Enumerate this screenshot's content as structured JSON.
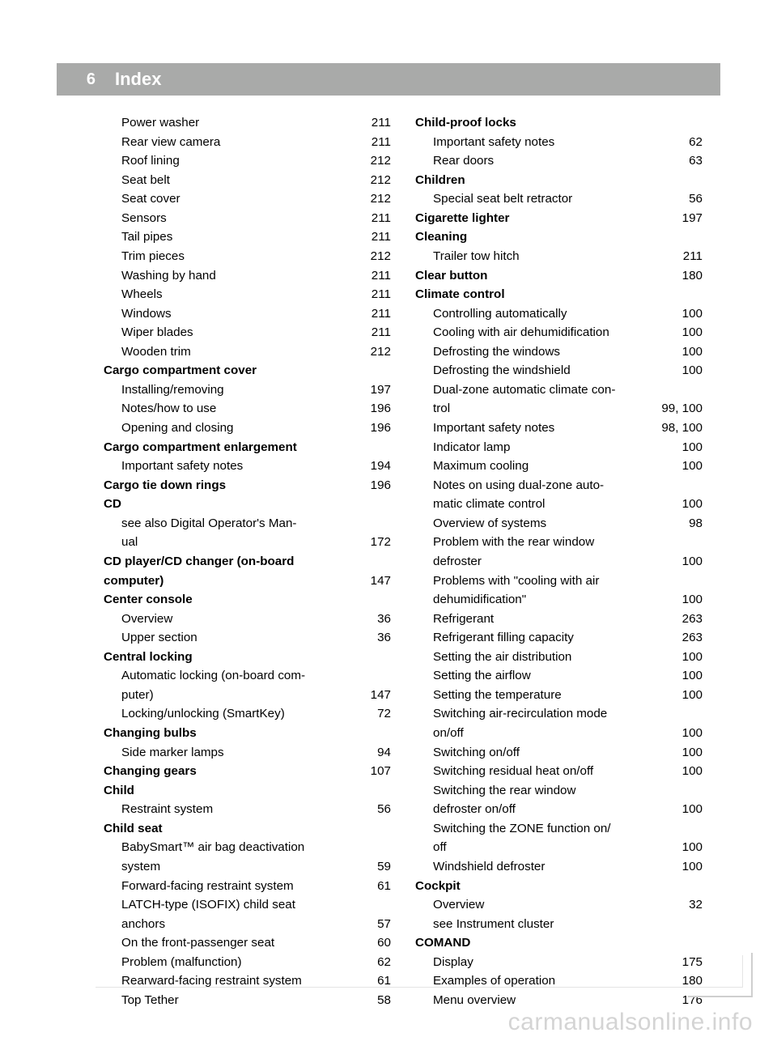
{
  "header": {
    "page_number": "6",
    "title": "Index"
  },
  "watermark": "carmanualsonline.info",
  "left": [
    {
      "label": "Power washer",
      "page": "211",
      "indent": true,
      "bold": false
    },
    {
      "label": "Rear view camera",
      "page": "211",
      "indent": true,
      "bold": false
    },
    {
      "label": "Roof lining",
      "page": "212",
      "indent": true,
      "bold": false
    },
    {
      "label": "Seat belt",
      "page": "212",
      "indent": true,
      "bold": false
    },
    {
      "label": "Seat cover",
      "page": "212",
      "indent": true,
      "bold": false
    },
    {
      "label": "Sensors",
      "page": "211",
      "indent": true,
      "bold": false
    },
    {
      "label": "Tail pipes",
      "page": "211",
      "indent": true,
      "bold": false
    },
    {
      "label": "Trim pieces",
      "page": "212",
      "indent": true,
      "bold": false
    },
    {
      "label": "Washing by hand",
      "page": "211",
      "indent": true,
      "bold": false
    },
    {
      "label": "Wheels",
      "page": "211",
      "indent": true,
      "bold": false
    },
    {
      "label": "Windows",
      "page": "211",
      "indent": true,
      "bold": false
    },
    {
      "label": "Wiper blades",
      "page": "211",
      "indent": true,
      "bold": false
    },
    {
      "label": "Wooden trim",
      "page": "212",
      "indent": true,
      "bold": false
    },
    {
      "label": "Cargo compartment cover",
      "page": "",
      "indent": false,
      "bold": true,
      "nodots": true
    },
    {
      "label": "Installing/removing",
      "page": "197",
      "indent": true,
      "bold": false
    },
    {
      "label": "Notes/how to use",
      "page": "196",
      "indent": true,
      "bold": false
    },
    {
      "label": "Opening and closing",
      "page": "196",
      "indent": true,
      "bold": false
    },
    {
      "label": "Cargo compartment enlargement",
      "page": "",
      "indent": false,
      "bold": true,
      "nodots": true
    },
    {
      "label": "Important safety notes",
      "page": "194",
      "indent": true,
      "bold": false
    },
    {
      "label": "Cargo tie down rings",
      "page": "196",
      "indent": false,
      "bold": true
    },
    {
      "label": "CD",
      "page": "",
      "indent": false,
      "bold": true,
      "nodots": true
    },
    {
      "label": "see also Digital Operator's Man-",
      "page": "",
      "indent": true,
      "bold": false,
      "nodots": true
    },
    {
      "label": "ual",
      "page": "172",
      "indent": true,
      "bold": false
    },
    {
      "label": "CD player/CD changer (on-board",
      "page": "",
      "indent": false,
      "bold": true,
      "nodots": true
    },
    {
      "label": "computer)",
      "page": "147",
      "indent": false,
      "bold": true
    },
    {
      "label": "Center console",
      "page": "",
      "indent": false,
      "bold": true,
      "nodots": true
    },
    {
      "label": "Overview",
      "page": "36",
      "indent": true,
      "bold": false
    },
    {
      "label": "Upper section",
      "page": "36",
      "indent": true,
      "bold": false
    },
    {
      "label": "Central locking",
      "page": "",
      "indent": false,
      "bold": true,
      "nodots": true
    },
    {
      "label": "Automatic locking (on-board com-",
      "page": "",
      "indent": true,
      "bold": false,
      "nodots": true
    },
    {
      "label": "puter)",
      "page": "147",
      "indent": true,
      "bold": false
    },
    {
      "label": "Locking/unlocking (SmartKey)",
      "page": "72",
      "indent": true,
      "bold": false
    },
    {
      "label": "Changing bulbs",
      "page": "",
      "indent": false,
      "bold": true,
      "nodots": true
    },
    {
      "label": "Side marker lamps",
      "page": "94",
      "indent": true,
      "bold": false
    },
    {
      "label": "Changing gears",
      "page": "107",
      "indent": false,
      "bold": true
    },
    {
      "label": "Child",
      "page": "",
      "indent": false,
      "bold": true,
      "nodots": true
    },
    {
      "label": "Restraint system",
      "page": "56",
      "indent": true,
      "bold": false
    },
    {
      "label": "Child seat",
      "page": "",
      "indent": false,
      "bold": true,
      "nodots": true
    },
    {
      "label": "BabySmart™ air bag deactivation",
      "page": "",
      "indent": true,
      "bold": false,
      "nodots": true
    },
    {
      "label": "system",
      "page": "59",
      "indent": true,
      "bold": false
    },
    {
      "label": "Forward-facing restraint system",
      "page": "61",
      "indent": true,
      "bold": false
    },
    {
      "label": "LATCH-type (ISOFIX) child seat",
      "page": "",
      "indent": true,
      "bold": false,
      "nodots": true
    },
    {
      "label": "anchors",
      "page": "57",
      "indent": true,
      "bold": false
    },
    {
      "label": "On the front-passenger seat",
      "page": "60",
      "indent": true,
      "bold": false
    },
    {
      "label": "Problem (malfunction)",
      "page": "62",
      "indent": true,
      "bold": false
    },
    {
      "label": "Rearward-facing restraint system",
      "page": "61",
      "indent": true,
      "bold": false
    },
    {
      "label": "Top Tether",
      "page": "58",
      "indent": true,
      "bold": false
    }
  ],
  "right": [
    {
      "label": "Child-proof locks",
      "page": "",
      "indent": false,
      "bold": true,
      "nodots": true
    },
    {
      "label": "Important safety notes",
      "page": "62",
      "indent": true,
      "bold": false
    },
    {
      "label": "Rear doors",
      "page": "63",
      "indent": true,
      "bold": false
    },
    {
      "label": "Children",
      "page": "",
      "indent": false,
      "bold": true,
      "nodots": true
    },
    {
      "label": "Special seat belt retractor",
      "page": "56",
      "indent": true,
      "bold": false
    },
    {
      "label": "Cigarette lighter",
      "page": "197",
      "indent": false,
      "bold": true
    },
    {
      "label": "Cleaning",
      "page": "",
      "indent": false,
      "bold": true,
      "nodots": true
    },
    {
      "label": "Trailer tow hitch",
      "page": "211",
      "indent": true,
      "bold": false
    },
    {
      "label": "Clear button",
      "page": "180",
      "indent": false,
      "bold": true
    },
    {
      "label": "Climate control",
      "page": "",
      "indent": false,
      "bold": true,
      "nodots": true
    },
    {
      "label": "Controlling automatically",
      "page": "100",
      "indent": true,
      "bold": false
    },
    {
      "label": "Cooling with air dehumidification",
      "page": "100",
      "indent": true,
      "bold": false,
      "shortdots": true
    },
    {
      "label": "Defrosting the windows",
      "page": "100",
      "indent": true,
      "bold": false
    },
    {
      "label": "Defrosting the windshield",
      "page": "100",
      "indent": true,
      "bold": false
    },
    {
      "label": "Dual-zone automatic climate con-",
      "page": "",
      "indent": true,
      "bold": false,
      "nodots": true
    },
    {
      "label": "trol",
      "page": "99, 100",
      "indent": true,
      "bold": false
    },
    {
      "label": "Important safety notes",
      "page": "98, 100",
      "indent": true,
      "bold": false
    },
    {
      "label": "Indicator lamp",
      "page": "100",
      "indent": true,
      "bold": false
    },
    {
      "label": "Maximum cooling",
      "page": "100",
      "indent": true,
      "bold": false
    },
    {
      "label": "Notes on using dual-zone auto-",
      "page": "",
      "indent": true,
      "bold": false,
      "nodots": true
    },
    {
      "label": "matic climate control",
      "page": "100",
      "indent": true,
      "bold": false
    },
    {
      "label": "Overview of systems",
      "page": "98",
      "indent": true,
      "bold": false
    },
    {
      "label": "Problem with the rear window",
      "page": "",
      "indent": true,
      "bold": false,
      "nodots": true
    },
    {
      "label": "defroster",
      "page": "100",
      "indent": true,
      "bold": false
    },
    {
      "label": "Problems with \"cooling with air",
      "page": "",
      "indent": true,
      "bold": false,
      "nodots": true
    },
    {
      "label": "dehumidification\"",
      "page": "100",
      "indent": true,
      "bold": false
    },
    {
      "label": "Refrigerant",
      "page": "263",
      "indent": true,
      "bold": false
    },
    {
      "label": "Refrigerant filling capacity",
      "page": "263",
      "indent": true,
      "bold": false
    },
    {
      "label": "Setting the air distribution",
      "page": "100",
      "indent": true,
      "bold": false
    },
    {
      "label": "Setting the airflow",
      "page": "100",
      "indent": true,
      "bold": false
    },
    {
      "label": "Setting the temperature",
      "page": "100",
      "indent": true,
      "bold": false
    },
    {
      "label": "Switching air-recirculation mode",
      "page": "",
      "indent": true,
      "bold": false,
      "nodots": true
    },
    {
      "label": "on/off",
      "page": "100",
      "indent": true,
      "bold": false
    },
    {
      "label": "Switching on/off",
      "page": "100",
      "indent": true,
      "bold": false
    },
    {
      "label": "Switching residual heat on/off",
      "page": "100",
      "indent": true,
      "bold": false
    },
    {
      "label": "Switching the rear window",
      "page": "",
      "indent": true,
      "bold": false,
      "nodots": true
    },
    {
      "label": "defroster on/off",
      "page": "100",
      "indent": true,
      "bold": false
    },
    {
      "label": "Switching the ZONE function on/",
      "page": "",
      "indent": true,
      "bold": false,
      "nodots": true
    },
    {
      "label": "off",
      "page": "100",
      "indent": true,
      "bold": false
    },
    {
      "label": "Windshield defroster",
      "page": "100",
      "indent": true,
      "bold": false
    },
    {
      "label": "Cockpit",
      "page": "",
      "indent": false,
      "bold": true,
      "nodots": true
    },
    {
      "label": "Overview",
      "page": "32",
      "indent": true,
      "bold": false
    },
    {
      "label": "see Instrument cluster",
      "page": "",
      "indent": true,
      "bold": false,
      "nodots": true
    },
    {
      "label": "COMAND",
      "page": "",
      "indent": false,
      "bold": true,
      "nodots": true
    },
    {
      "label": "Display",
      "page": "175",
      "indent": true,
      "bold": false
    },
    {
      "label": "Examples of operation",
      "page": "180",
      "indent": true,
      "bold": false
    },
    {
      "label": "Menu overview",
      "page": "176",
      "indent": true,
      "bold": false
    }
  ]
}
